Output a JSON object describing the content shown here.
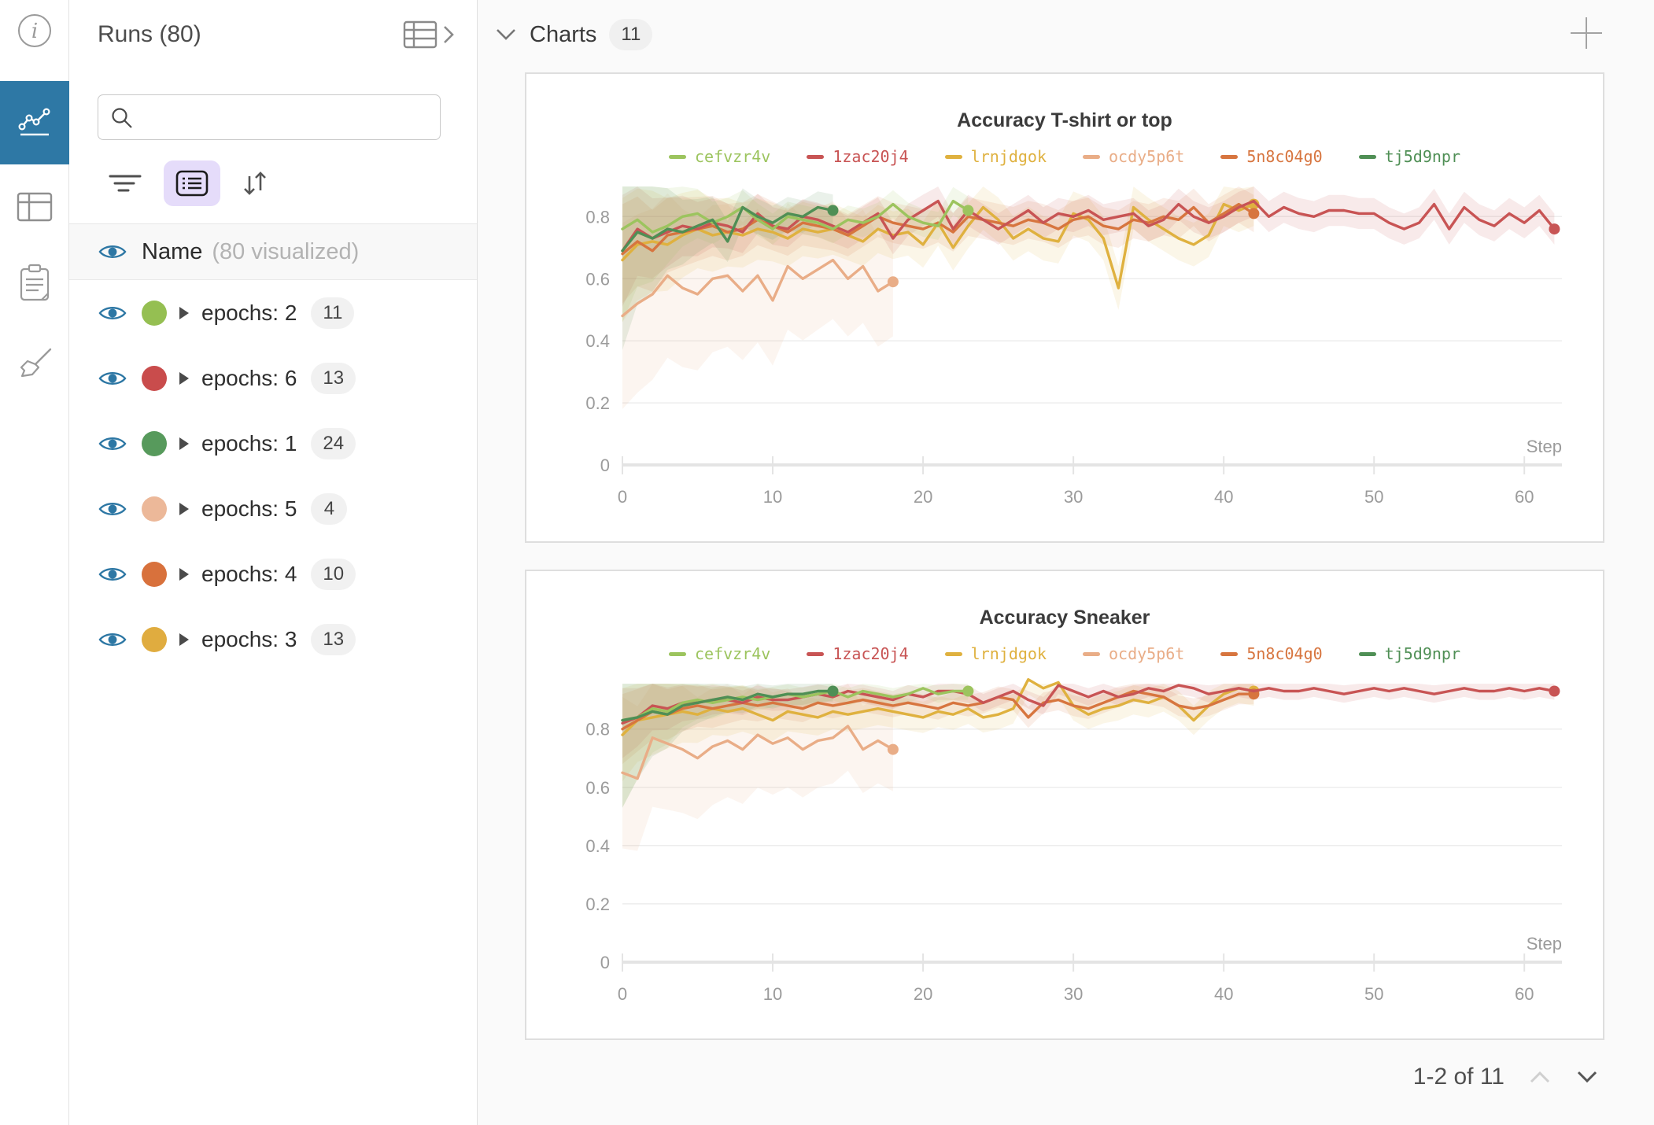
{
  "rail": {
    "items": [
      {
        "icon": "info-icon",
        "active": false
      },
      {
        "icon": "line-chart-icon",
        "active": true,
        "active_color": "#2e78a5"
      },
      {
        "icon": "table-panel-icon",
        "active": false
      },
      {
        "icon": "clipboard-icon",
        "active": false
      },
      {
        "icon": "broom-icon",
        "active": false
      }
    ]
  },
  "sidebar": {
    "title": "Runs (80)",
    "search_placeholder": "",
    "controls": {
      "filter_icon": "filter-icon",
      "list_icon": "list-view-icon",
      "sort_icon": "sort-icon",
      "list_active_bg": "#e5dcfa"
    },
    "header_row": {
      "label": "Name",
      "sublabel": "(80 visualized)"
    },
    "runs": [
      {
        "label": "epochs: 2",
        "count": "11",
        "color": "#95bf52"
      },
      {
        "label": "epochs: 6",
        "count": "13",
        "color": "#c94c4c"
      },
      {
        "label": "epochs: 1",
        "count": "24",
        "color": "#579a5c"
      },
      {
        "label": "epochs: 5",
        "count": "4",
        "color": "#ecb899"
      },
      {
        "label": "epochs: 4",
        "count": "10",
        "color": "#d8713c"
      },
      {
        "label": "epochs: 3",
        "count": "13",
        "color": "#e0ac3f"
      }
    ],
    "eye_color": "#2d77a4"
  },
  "main": {
    "section_title": "Charts",
    "section_count": "11",
    "add_icon": "plus-icon",
    "pagination": {
      "label": "1-2 of 11",
      "up_icon": "chevron-up-icon",
      "down_icon": "chevron-down-icon"
    }
  },
  "chart_data": [
    {
      "type": "line",
      "title": "Accuracy T-shirt or top",
      "xlabel": "Step",
      "ylabel": "",
      "xlim": [
        0,
        62.5
      ],
      "ylim": [
        0,
        0.92
      ],
      "yticks": [
        0,
        0.2,
        0.4,
        0.6,
        0.8
      ],
      "xticks": [
        0,
        10,
        20,
        30,
        40,
        50,
        60
      ],
      "grid": true,
      "legend_position": "top",
      "series": [
        {
          "name": "ocdy5p6t",
          "color": "#e9ad87",
          "band": [
            0.3,
            0.14,
            12
          ],
          "values": [
            0.48,
            0.52,
            0.55,
            0.61,
            0.57,
            0.55,
            0.6,
            0.61,
            0.56,
            0.61,
            0.53,
            0.64,
            0.6,
            0.63,
            0.66,
            0.6,
            0.64,
            0.56,
            0.59
          ]
        },
        {
          "name": "lrnjdgok",
          "color": "#dfb13f",
          "band": [
            0.2,
            0.07,
            6
          ],
          "values": [
            0.66,
            0.71,
            0.72,
            0.71,
            0.74,
            0.76,
            0.74,
            0.75,
            0.74,
            0.76,
            0.75,
            0.73,
            0.76,
            0.75,
            0.76,
            0.74,
            0.72,
            0.76,
            0.74,
            0.75,
            0.71,
            0.78,
            0.7,
            0.77,
            0.83,
            0.79,
            0.73,
            0.76,
            0.73,
            0.72,
            0.81,
            0.79,
            0.73,
            0.57,
            0.83,
            0.79,
            0.76,
            0.73,
            0.71,
            0.74,
            0.84,
            0.82,
            0.84
          ]
        },
        {
          "name": "5n8c04g0",
          "color": "#d7753f",
          "band": [
            0.16,
            0.06,
            6
          ],
          "values": [
            0.68,
            0.72,
            0.69,
            0.74,
            0.75,
            0.76,
            0.77,
            0.75,
            0.76,
            0.79,
            0.77,
            0.75,
            0.78,
            0.77,
            0.76,
            0.74,
            0.77,
            0.8,
            0.78,
            0.77,
            0.76,
            0.78,
            0.75,
            0.8,
            0.79,
            0.78,
            0.77,
            0.79,
            0.78,
            0.76,
            0.79,
            0.8,
            0.77,
            0.76,
            0.79,
            0.78,
            0.8,
            0.79,
            0.83,
            0.78,
            0.81,
            0.84,
            0.81
          ]
        },
        {
          "name": "1zac20j4",
          "color": "#c85454",
          "band": [
            0.18,
            0.05,
            4
          ],
          "values": [
            0.69,
            0.76,
            0.73,
            0.75,
            0.77,
            0.76,
            0.78,
            0.77,
            0.75,
            0.81,
            0.77,
            0.76,
            0.8,
            0.79,
            0.77,
            0.75,
            0.78,
            0.81,
            0.73,
            0.79,
            0.82,
            0.85,
            0.76,
            0.82,
            0.79,
            0.76,
            0.79,
            0.82,
            0.78,
            0.81,
            0.8,
            0.82,
            0.79,
            0.8,
            0.81,
            0.77,
            0.79,
            0.84,
            0.8,
            0.78,
            0.8,
            0.83,
            0.85,
            0.8,
            0.83,
            0.81,
            0.8,
            0.82,
            0.82,
            0.81,
            0.81,
            0.78,
            0.76,
            0.78,
            0.84,
            0.76,
            0.83,
            0.79,
            0.77,
            0.81,
            0.78,
            0.82,
            0.76
          ]
        },
        {
          "name": "cefvzr4v",
          "color": "#9cc45e",
          "band": [
            0.3,
            0.045,
            2.5
          ],
          "values": [
            0.76,
            0.79,
            0.75,
            0.77,
            0.8,
            0.81,
            0.78,
            0.8,
            0.83,
            0.79,
            0.76,
            0.8,
            0.79,
            0.78,
            0.76,
            0.79,
            0.78,
            0.8,
            0.84,
            0.8,
            0.78,
            0.77,
            0.85,
            0.82
          ]
        },
        {
          "name": "tj5d9npr",
          "color": "#4f8f55",
          "band": [
            0.32,
            0.05,
            2.5
          ],
          "values": [
            0.69,
            0.75,
            0.73,
            0.76,
            0.75,
            0.77,
            0.79,
            0.72,
            0.83,
            0.8,
            0.78,
            0.81,
            0.8,
            0.83,
            0.82
          ]
        }
      ],
      "legend_order": [
        "cefvzr4v",
        "1zac20j4",
        "lrnjdgok",
        "ocdy5p6t",
        "5n8c04g0",
        "tj5d9npr"
      ]
    },
    {
      "type": "line",
      "title": "Accuracy Sneaker",
      "xlabel": "Step",
      "ylabel": "",
      "xlim": [
        0,
        62.5
      ],
      "ylim": [
        0,
        0.98
      ],
      "yticks": [
        0,
        0.2,
        0.4,
        0.6,
        0.8
      ],
      "xticks": [
        0,
        10,
        20,
        30,
        40,
        50,
        60
      ],
      "grid": true,
      "legend_position": "top",
      "series": [
        {
          "name": "ocdy5p6t",
          "color": "#e9ad87",
          "band": [
            0.26,
            0.11,
            12
          ],
          "values": [
            0.65,
            0.63,
            0.77,
            0.75,
            0.73,
            0.7,
            0.74,
            0.76,
            0.73,
            0.78,
            0.75,
            0.77,
            0.73,
            0.76,
            0.77,
            0.81,
            0.73,
            0.76,
            0.73
          ]
        },
        {
          "name": "lrnjdgok",
          "color": "#dfb13f",
          "band": [
            0.16,
            0.05,
            6
          ],
          "values": [
            0.78,
            0.83,
            0.84,
            0.85,
            0.86,
            0.85,
            0.87,
            0.86,
            0.87,
            0.85,
            0.83,
            0.86,
            0.85,
            0.84,
            0.86,
            0.85,
            0.86,
            0.87,
            0.86,
            0.85,
            0.84,
            0.86,
            0.85,
            0.87,
            0.84,
            0.85,
            0.87,
            0.97,
            0.94,
            0.96,
            0.88,
            0.85,
            0.87,
            0.88,
            0.9,
            0.89,
            0.91,
            0.88,
            0.83,
            0.88,
            0.92,
            0.94,
            0.93
          ]
        },
        {
          "name": "5n8c04g0",
          "color": "#d7753f",
          "band": [
            0.12,
            0.035,
            6
          ],
          "values": [
            0.8,
            0.83,
            0.86,
            0.85,
            0.87,
            0.88,
            0.87,
            0.88,
            0.89,
            0.88,
            0.89,
            0.88,
            0.87,
            0.89,
            0.88,
            0.89,
            0.9,
            0.89,
            0.88,
            0.89,
            0.88,
            0.87,
            0.89,
            0.88,
            0.89,
            0.91,
            0.9,
            0.84,
            0.89,
            0.9,
            0.88,
            0.87,
            0.89,
            0.91,
            0.93,
            0.92,
            0.91,
            0.88,
            0.87,
            0.88,
            0.9,
            0.92,
            0.92
          ]
        },
        {
          "name": "1zac20j4",
          "color": "#c85454",
          "band": [
            0.12,
            0.03,
            4
          ],
          "values": [
            0.82,
            0.84,
            0.88,
            0.87,
            0.89,
            0.89,
            0.9,
            0.9,
            0.89,
            0.91,
            0.9,
            0.9,
            0.91,
            0.92,
            0.91,
            0.93,
            0.92,
            0.91,
            0.9,
            0.92,
            0.91,
            0.93,
            0.93,
            0.92,
            0.89,
            0.91,
            0.93,
            0.9,
            0.88,
            0.95,
            0.93,
            0.91,
            0.93,
            0.91,
            0.92,
            0.94,
            0.93,
            0.95,
            0.94,
            0.92,
            0.93,
            0.94,
            0.93,
            0.94,
            0.93,
            0.93,
            0.94,
            0.93,
            0.92,
            0.93,
            0.94,
            0.93,
            0.94,
            0.93,
            0.92,
            0.93,
            0.94,
            0.93,
            0.93,
            0.94,
            0.93,
            0.94,
            0.93
          ]
        },
        {
          "name": "cefvzr4v",
          "color": "#9cc45e",
          "band": [
            0.3,
            0.03,
            2.5
          ],
          "values": [
            0.83,
            0.84,
            0.87,
            0.86,
            0.89,
            0.9,
            0.89,
            0.9,
            0.91,
            0.9,
            0.91,
            0.92,
            0.91,
            0.92,
            0.93,
            0.91,
            0.93,
            0.92,
            0.91,
            0.92,
            0.94,
            0.92,
            0.93,
            0.93
          ]
        },
        {
          "name": "tj5d9npr",
          "color": "#4f8f55",
          "band": [
            0.3,
            0.035,
            2.5
          ],
          "values": [
            0.83,
            0.84,
            0.86,
            0.85,
            0.88,
            0.89,
            0.9,
            0.91,
            0.9,
            0.92,
            0.91,
            0.92,
            0.92,
            0.93,
            0.93
          ]
        }
      ],
      "legend_order": [
        "cefvzr4v",
        "1zac20j4",
        "lrnjdgok",
        "ocdy5p6t",
        "5n8c04g0",
        "tj5d9npr"
      ]
    }
  ]
}
